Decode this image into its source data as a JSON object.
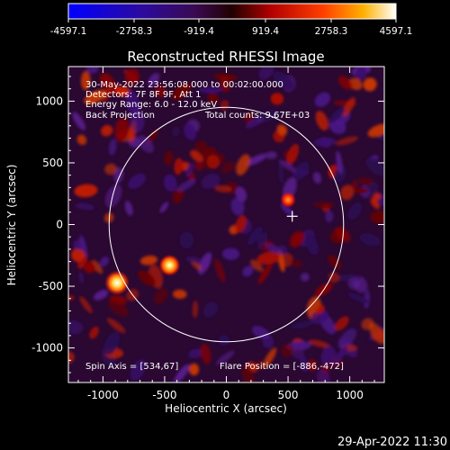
{
  "chart_data": {
    "type": "heatmap",
    "title": "Reconstructed RHESSI Image",
    "xlabel": "Heliocentric X (arcsec)",
    "ylabel": "Heliocentric Y (arcsec)",
    "xlim": [
      -1280,
      1280
    ],
    "ylim": [
      -1280,
      1280
    ],
    "xticks": [
      -1000,
      -500,
      0,
      500,
      1000
    ],
    "yticks": [
      -1000,
      -500,
      0,
      500,
      1000
    ],
    "colorbar": {
      "range": [
        -4597.1,
        4597.1
      ],
      "ticks": [
        "-4597.1",
        "-2758.3",
        "-919.4",
        "919.4",
        "2758.3",
        "4597.1"
      ],
      "colormap": "blue-purple-red-orange-yellow-white"
    },
    "annotations": [
      "30-May-2022 23:56:08.000 to 00:02:00.000",
      "Detectors: 7F 8F 9F, Att 1",
      "Energy Range: 6.0 - 12.0 keV",
      "Back Projection",
      "Total counts: 9.67E+03"
    ],
    "spin_axis_label": "Spin Axis = [534,67]",
    "flare_position_label": "Flare Position = [-886,-472]",
    "solar_limb_radius": 950,
    "solar_limb_center": [
      0,
      0
    ],
    "crosshair_marker": [
      534,
      67
    ],
    "bright_sources": [
      {
        "x": -886,
        "y": -472,
        "level": "peak"
      },
      {
        "x": -460,
        "y": -330,
        "level": "high"
      },
      {
        "x": 500,
        "y": 200,
        "level": "medium"
      }
    ],
    "grid": false
  },
  "footer": {
    "timestamp": "29-Apr-2022 11:30"
  }
}
